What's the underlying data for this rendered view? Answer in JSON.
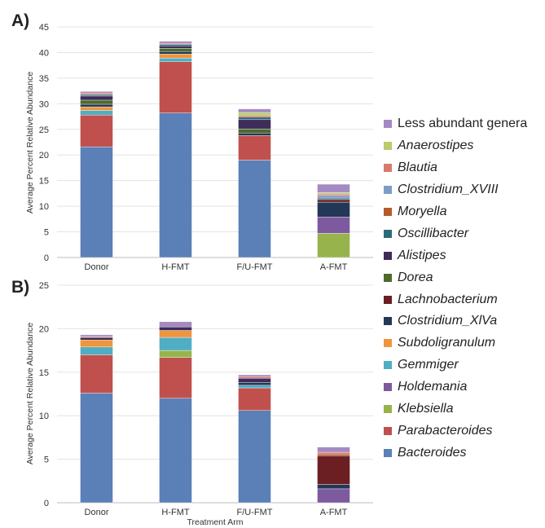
{
  "panels": {
    "a_label": "A)",
    "b_label": "B)"
  },
  "chart_data": [
    {
      "type": "bar",
      "stacked": true,
      "panel": "A)",
      "ylabel": "Average Percent Relative Abundance",
      "xlabel": "",
      "ylim": [
        0,
        45
      ],
      "yticks": [
        "0",
        "5",
        "10",
        "15",
        "20",
        "25",
        "30",
        "35",
        "40",
        "45"
      ],
      "grid": true,
      "categories": [
        "Donor",
        "H-FMT",
        "F/U-FMT",
        "A-FMT"
      ],
      "series": [
        {
          "name": "Bacteroides",
          "values": [
            21.6,
            28.2,
            19.0,
            0.0
          ]
        },
        {
          "name": "Parabacteroides",
          "values": [
            6.2,
            10.0,
            4.8,
            0.0
          ]
        },
        {
          "name": "Klebsiella",
          "values": [
            0.0,
            0.0,
            0.0,
            4.7
          ]
        },
        {
          "name": "Holdemania",
          "values": [
            0.0,
            0.0,
            0.0,
            3.2
          ]
        },
        {
          "name": "Gemmiger",
          "values": [
            0.9,
            0.7,
            0.0,
            0.0
          ]
        },
        {
          "name": "Subdoligranulum",
          "values": [
            0.7,
            0.8,
            0.0,
            0.0
          ]
        },
        {
          "name": "Clostridium_XlVa",
          "values": [
            0.5,
            0.5,
            0.5,
            2.9
          ]
        },
        {
          "name": "Lachnobacterium",
          "values": [
            0.0,
            0.0,
            0.0,
            0.5
          ]
        },
        {
          "name": "Dorea",
          "values": [
            0.8,
            0.6,
            0.8,
            0.0
          ]
        },
        {
          "name": "Alistipes",
          "values": [
            0.8,
            0.5,
            1.8,
            0.0
          ]
        },
        {
          "name": "Oscillibacter",
          "values": [
            0.3,
            0.3,
            0.5,
            0.3
          ]
        },
        {
          "name": "Moryella",
          "values": [
            0.0,
            0.0,
            0.0,
            0.0
          ]
        },
        {
          "name": "Clostridium_XVIII",
          "values": [
            0.0,
            0.0,
            0.0,
            0.5
          ]
        },
        {
          "name": "Blautia",
          "values": [
            0.3,
            0.2,
            0.3,
            0.3
          ]
        },
        {
          "name": "Anaerostipes",
          "values": [
            0.0,
            0.0,
            0.6,
            0.3
          ]
        },
        {
          "name": "Less abundant genera",
          "values": [
            0.3,
            0.4,
            0.7,
            1.6
          ]
        }
      ]
    },
    {
      "type": "bar",
      "stacked": true,
      "panel": "B)",
      "ylabel": "Average Percent Relative Abundance",
      "xlabel": "Treatment Arm",
      "ylim": [
        0,
        25
      ],
      "yticks": [
        "0",
        "5",
        "10",
        "15",
        "20",
        "25"
      ],
      "grid": true,
      "categories": [
        "Donor",
        "H-FMT",
        "F/U-FMT",
        "A-FMT"
      ],
      "series": [
        {
          "name": "Bacteroides",
          "values": [
            12.6,
            12.0,
            10.6,
            0.0
          ]
        },
        {
          "name": "Parabacteroides",
          "values": [
            4.4,
            4.7,
            2.6,
            0.0
          ]
        },
        {
          "name": "Klebsiella",
          "values": [
            0.0,
            0.8,
            0.0,
            0.0
          ]
        },
        {
          "name": "Holdemania",
          "values": [
            0.0,
            0.0,
            0.0,
            1.6
          ]
        },
        {
          "name": "Gemmiger",
          "values": [
            0.9,
            1.5,
            0.3,
            0.0
          ]
        },
        {
          "name": "Subdoligranulum",
          "values": [
            0.8,
            0.8,
            0.0,
            0.0
          ]
        },
        {
          "name": "Clostridium_XlVa",
          "values": [
            0.0,
            0.0,
            0.3,
            0.5
          ]
        },
        {
          "name": "Lachnobacterium",
          "values": [
            0.0,
            0.0,
            0.0,
            3.3
          ]
        },
        {
          "name": "Dorea",
          "values": [
            0.0,
            0.0,
            0.0,
            0.0
          ]
        },
        {
          "name": "Alistipes",
          "values": [
            0.3,
            0.4,
            0.5,
            0.0
          ]
        },
        {
          "name": "Oscillibacter",
          "values": [
            0.0,
            0.0,
            0.0,
            0.0
          ]
        },
        {
          "name": "Moryella",
          "values": [
            0.0,
            0.0,
            0.0,
            0.2
          ]
        },
        {
          "name": "Clostridium_XVIII",
          "values": [
            0.0,
            0.0,
            0.0,
            0.0
          ]
        },
        {
          "name": "Blautia",
          "values": [
            0.1,
            0.0,
            0.2,
            0.2
          ]
        },
        {
          "name": "Anaerostipes",
          "values": [
            0.0,
            0.0,
            0.0,
            0.0
          ]
        },
        {
          "name": "Less abundant genera",
          "values": [
            0.2,
            0.6,
            0.2,
            0.6
          ]
        }
      ]
    }
  ],
  "legend": [
    {
      "name": "Less abundant genera",
      "italic": false,
      "color": "#a48ac2"
    },
    {
      "name": "Anaerostipes",
      "italic": true,
      "color": "#b8cc6a"
    },
    {
      "name": "Blautia",
      "italic": true,
      "color": "#d9796e"
    },
    {
      "name": "Clostridium_XVIII",
      "italic": true,
      "color": "#7f9cc9"
    },
    {
      "name": "Moryella",
      "italic": true,
      "color": "#b85a2b"
    },
    {
      "name": "Oscillibacter",
      "italic": true,
      "color": "#2d6a78"
    },
    {
      "name": "Alistipes",
      "italic": true,
      "color": "#3e2c5a"
    },
    {
      "name": "Dorea",
      "italic": true,
      "color": "#4d6b2c"
    },
    {
      "name": "Lachnobacterium",
      "italic": true,
      "color": "#6b1f22"
    },
    {
      "name": "Clostridium_XlVa",
      "italic": true,
      "color": "#233757"
    },
    {
      "name": "Subdoligranulum",
      "italic": true,
      "color": "#f0953c"
    },
    {
      "name": "Gemmiger",
      "italic": true,
      "color": "#4faec4"
    },
    {
      "name": "Holdemania",
      "italic": true,
      "color": "#7d5a9e"
    },
    {
      "name": "Klebsiella",
      "italic": true,
      "color": "#97b44c"
    },
    {
      "name": "Parabacteroides",
      "italic": true,
      "color": "#c0504d"
    },
    {
      "name": "Bacteroides",
      "italic": true,
      "color": "#5b7fb7"
    }
  ]
}
